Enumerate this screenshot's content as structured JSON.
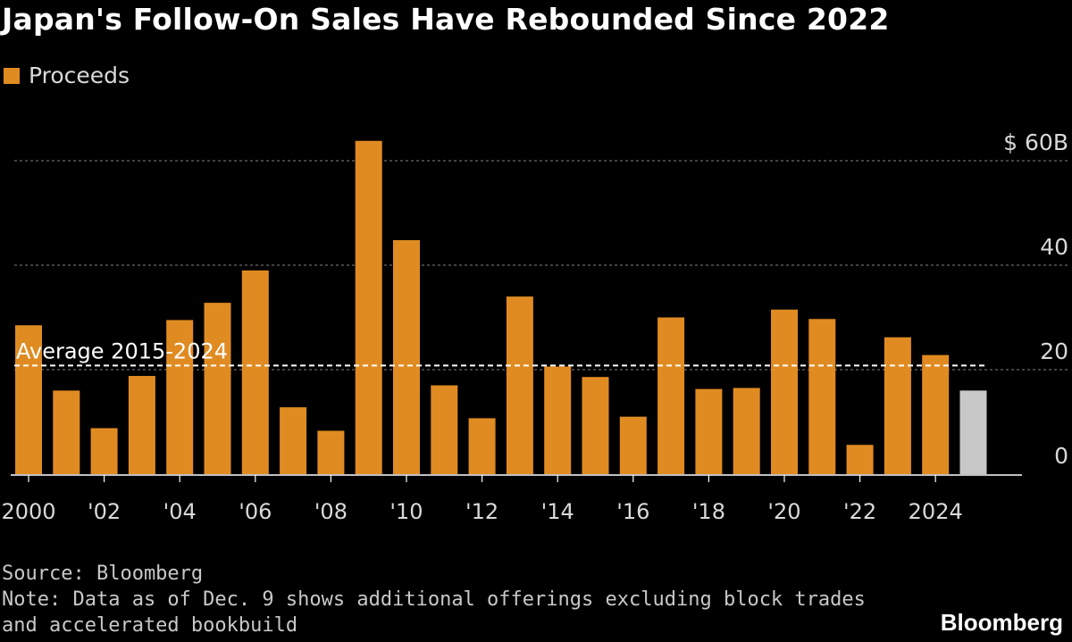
{
  "title": "Japan's Follow-On Sales Have Rebounded Since 2022",
  "legend": {
    "label": "Proceeds"
  },
  "colors": {
    "bar": "#e08b22",
    "bar_latest": "#c8c8c8",
    "grid": "#6a6a6a",
    "axis": "#ffffff",
    "text": "#d9d9d9",
    "average_line": "#ffffff"
  },
  "chart_data": {
    "type": "bar",
    "title": "Japan's Follow-On Sales Have Rebounded Since 2022",
    "ylabel": "",
    "xlabel": "",
    "ylim": [
      0,
      60
    ],
    "y_ticks": [
      {
        "value": 0,
        "label": "0"
      },
      {
        "value": 20,
        "label": "20"
      },
      {
        "value": 40,
        "label": "40"
      },
      {
        "value": 60,
        "label": "$ 60B"
      }
    ],
    "categories": [
      "2000",
      "2001",
      "2002",
      "2003",
      "2004",
      "2005",
      "2006",
      "2007",
      "2008",
      "2009",
      "2010",
      "2011",
      "2012",
      "2013",
      "2014",
      "2015",
      "2016",
      "2017",
      "2018",
      "2019",
      "2020",
      "2021",
      "2022",
      "2023",
      "2024",
      "2025"
    ],
    "x_tick_labels": [
      {
        "category": "2000",
        "label": "2000"
      },
      {
        "category": "2002",
        "label": "'02"
      },
      {
        "category": "2004",
        "label": "'04"
      },
      {
        "category": "2006",
        "label": "'06"
      },
      {
        "category": "2008",
        "label": "'08"
      },
      {
        "category": "2010",
        "label": "'10"
      },
      {
        "category": "2012",
        "label": "'12"
      },
      {
        "category": "2014",
        "label": "'14"
      },
      {
        "category": "2016",
        "label": "'16"
      },
      {
        "category": "2018",
        "label": "'18"
      },
      {
        "category": "2020",
        "label": "'20"
      },
      {
        "category": "2022",
        "label": "'22"
      },
      {
        "category": "2024",
        "label": "2024"
      }
    ],
    "series": [
      {
        "name": "Proceeds",
        "values": [
          28.5,
          16.0,
          8.8,
          18.8,
          29.5,
          32.8,
          39.0,
          12.8,
          8.3,
          63.8,
          44.8,
          17.0,
          10.7,
          34.0,
          20.6,
          18.6,
          11.0,
          30.0,
          16.3,
          16.5,
          31.5,
          29.7,
          5.6,
          26.2,
          22.8,
          16.0
        ],
        "highlight_last": true
      }
    ],
    "reference_line": {
      "label": "Average 2015-2024",
      "value": 20.8
    },
    "legend_position": "top-left"
  },
  "footer": {
    "source": "Source: Bloomberg",
    "note_line1": "Note: Data as of Dec. 9 shows additional offerings excluding block trades",
    "note_line2": "and accelerated bookbuild"
  },
  "brand": "Bloomberg"
}
